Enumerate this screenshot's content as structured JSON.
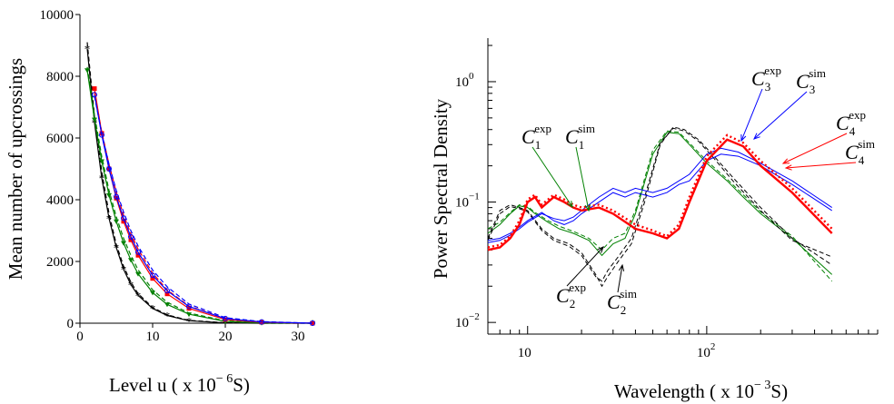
{
  "chart_data": [
    {
      "type": "line",
      "xlabel": "Level  u ( x 10",
      "xlabel_exp": "− 6",
      "xlabel_tail": "S)",
      "ylabel": "Mean number of upcrossings",
      "xlim": [
        0,
        32
      ],
      "ylim": [
        0,
        10000
      ],
      "xticks": [
        0,
        10,
        20,
        30
      ],
      "yticks": [
        0,
        2000,
        4000,
        6000,
        8000,
        10000
      ],
      "series": [
        {
          "color": "#000000",
          "style": "solid",
          "marker": "*",
          "x": [
            1,
            2,
            3,
            4,
            5,
            6,
            7,
            8,
            10,
            12,
            15,
            20,
            25,
            32
          ],
          "y": [
            8900,
            6500,
            4700,
            3400,
            2450,
            1750,
            1250,
            900,
            480,
            250,
            80,
            10,
            0,
            0
          ]
        },
        {
          "color": "#000000",
          "style": "dashed",
          "marker": "none",
          "x": [
            1,
            2,
            3,
            4,
            5,
            6,
            7,
            8,
            10,
            12,
            15,
            20,
            25,
            32
          ],
          "y": [
            9100,
            6700,
            4900,
            3550,
            2550,
            1850,
            1330,
            960,
            510,
            270,
            90,
            15,
            0,
            0
          ]
        },
        {
          "color": "#008000",
          "style": "solid",
          "marker": "v",
          "x": [
            1,
            2,
            3,
            4,
            5,
            6,
            7,
            8,
            10,
            12,
            15,
            20,
            25,
            32
          ],
          "y": [
            8200,
            6600,
            5250,
            4150,
            3300,
            2600,
            2050,
            1600,
            990,
            610,
            290,
            60,
            10,
            0
          ]
        },
        {
          "color": "#008000",
          "style": "dashed",
          "marker": "none",
          "x": [
            1,
            2,
            3,
            4,
            5,
            6,
            7,
            8,
            10,
            12,
            15,
            20,
            25,
            32
          ],
          "y": [
            8300,
            6750,
            5400,
            4300,
            3450,
            2750,
            2200,
            1730,
            1080,
            680,
            330,
            75,
            15,
            0
          ]
        },
        {
          "color": "#ff0000",
          "style": "solid",
          "marker": "s",
          "x": [
            2,
            3,
            4,
            5,
            6,
            7,
            8,
            10,
            12,
            15,
            20,
            25,
            32
          ],
          "y": [
            7600,
            6150,
            5000,
            4050,
            3300,
            2700,
            2200,
            1450,
            950,
            480,
            120,
            30,
            0
          ]
        },
        {
          "color": "#ff0000",
          "style": "dashed",
          "marker": "none",
          "x": [
            2,
            3,
            4,
            5,
            6,
            7,
            8,
            10,
            12,
            15,
            20,
            25,
            32
          ],
          "y": [
            7500,
            6200,
            5150,
            4250,
            3500,
            2900,
            2400,
            1620,
            1080,
            560,
            150,
            40,
            0
          ]
        },
        {
          "color": "#0000ff",
          "style": "solid",
          "marker": "o",
          "x": [
            2,
            3,
            4,
            5,
            6,
            7,
            8,
            10,
            12,
            15,
            20,
            25,
            32
          ],
          "y": [
            7400,
            6100,
            5000,
            4100,
            3400,
            2800,
            2300,
            1550,
            1050,
            540,
            150,
            40,
            0
          ]
        },
        {
          "color": "#0000ff",
          "style": "dashed",
          "marker": "none",
          "x": [
            2,
            3,
            4,
            5,
            6,
            7,
            8,
            10,
            12,
            15,
            20,
            25,
            32
          ],
          "y": [
            7350,
            6150,
            5150,
            4300,
            3600,
            3000,
            2500,
            1720,
            1180,
            620,
            180,
            50,
            0
          ]
        }
      ]
    },
    {
      "type": "line",
      "xscale": "log",
      "yscale": "log",
      "xlabel": "Wavelength ( x 10",
      "xlabel_exp": "− 3",
      "xlabel_tail": "S)",
      "ylabel": "Power Spectral Density",
      "xlim": [
        6,
        900
      ],
      "ylim": [
        0.008,
        2.3
      ],
      "xtick_labels": [
        {
          "base": "10",
          "exp": ""
        },
        {
          "base": "10",
          "exp": "2"
        }
      ],
      "xticks": [
        10,
        100
      ],
      "ytick_labels": [
        {
          "base": "10",
          "exp": "0"
        },
        {
          "base": "10",
          "exp": "−1"
        },
        {
          "base": "10",
          "exp": "−2"
        }
      ],
      "yticks": [
        1,
        0.1,
        0.01
      ],
      "annotations": [
        {
          "base": "C",
          "sub": "1",
          "sup": "exp",
          "color": "#008000"
        },
        {
          "base": "C",
          "sub": "1",
          "sup": "sim",
          "color": "#008000"
        },
        {
          "base": "C",
          "sub": "2",
          "sup": "exp",
          "color": "#000000"
        },
        {
          "base": "C",
          "sub": "2",
          "sup": "sim",
          "color": "#000000"
        },
        {
          "base": "C",
          "sub": "3",
          "sup": "exp",
          "color": "#0000ff"
        },
        {
          "base": "C",
          "sub": "3",
          "sup": "sim",
          "color": "#0000ff"
        },
        {
          "base": "C",
          "sub": "4",
          "sup": "exp",
          "color": "#ff0000"
        },
        {
          "base": "C",
          "sub": "4",
          "sup": "sim",
          "color": "#ff0000"
        }
      ],
      "series": [
        {
          "color": "#008000",
          "style": "solid",
          "width": 1,
          "x": [
            6,
            7,
            8,
            9,
            10,
            11,
            13,
            15,
            18,
            22,
            26,
            30,
            35,
            40,
            50,
            60,
            70,
            80,
            100,
            130,
            160,
            200,
            300,
            500
          ],
          "y": [
            0.055,
            0.065,
            0.08,
            0.093,
            0.09,
            0.08,
            0.068,
            0.06,
            0.055,
            0.048,
            0.036,
            0.045,
            0.05,
            0.08,
            0.25,
            0.38,
            0.37,
            0.3,
            0.21,
            0.15,
            0.11,
            0.08,
            0.05,
            0.025
          ]
        },
        {
          "color": "#008000",
          "style": "dashed",
          "width": 1,
          "x": [
            6,
            7,
            8,
            9,
            10,
            11,
            13,
            15,
            18,
            22,
            26,
            30,
            35,
            40,
            50,
            60,
            70,
            80,
            100,
            130,
            160,
            200,
            300,
            500
          ],
          "y": [
            0.06,
            0.068,
            0.082,
            0.095,
            0.092,
            0.082,
            0.07,
            0.063,
            0.057,
            0.05,
            0.04,
            0.05,
            0.055,
            0.085,
            0.27,
            0.39,
            0.38,
            0.31,
            0.22,
            0.155,
            0.115,
            0.083,
            0.052,
            0.022
          ]
        },
        {
          "color": "#000000",
          "style": "dashed",
          "width": 1,
          "x": [
            6,
            7,
            8,
            9,
            10,
            12,
            14,
            17,
            20,
            24,
            26,
            28,
            32,
            38,
            45,
            55,
            65,
            75,
            90,
            110,
            140,
            200,
            300,
            500
          ],
          "y": [
            0.05,
            0.085,
            0.095,
            0.09,
            0.085,
            0.06,
            0.05,
            0.045,
            0.038,
            0.025,
            0.02,
            0.024,
            0.032,
            0.045,
            0.1,
            0.3,
            0.42,
            0.4,
            0.33,
            0.24,
            0.16,
            0.09,
            0.05,
            0.03
          ]
        },
        {
          "color": "#000000",
          "style": "dashed",
          "width": 1,
          "x": [
            6,
            7,
            8,
            9,
            10,
            12,
            14,
            17,
            20,
            24,
            26,
            28,
            32,
            38,
            45,
            55,
            65,
            75,
            90,
            110,
            140,
            200,
            300,
            500
          ],
          "y": [
            0.048,
            0.08,
            0.092,
            0.088,
            0.083,
            0.058,
            0.048,
            0.043,
            0.036,
            0.024,
            0.022,
            0.027,
            0.035,
            0.05,
            0.11,
            0.31,
            0.41,
            0.39,
            0.32,
            0.23,
            0.15,
            0.085,
            0.048,
            0.035
          ]
        },
        {
          "color": "#0000ff",
          "style": "solid",
          "width": 1,
          "x": [
            6,
            7,
            8,
            9,
            10,
            12,
            14,
            16,
            18,
            20,
            25,
            30,
            35,
            40,
            50,
            60,
            70,
            80,
            100,
            120,
            150,
            200,
            300,
            500
          ],
          "y": [
            0.048,
            0.05,
            0.055,
            0.062,
            0.07,
            0.082,
            0.07,
            0.065,
            0.07,
            0.08,
            0.1,
            0.12,
            0.11,
            0.12,
            0.11,
            0.12,
            0.14,
            0.15,
            0.22,
            0.25,
            0.24,
            0.2,
            0.14,
            0.085
          ]
        },
        {
          "color": "#0000ff",
          "style": "solid",
          "width": 1,
          "x": [
            6,
            7,
            8,
            9,
            10,
            12,
            14,
            16,
            18,
            20,
            25,
            30,
            35,
            40,
            50,
            60,
            70,
            80,
            100,
            120,
            150,
            200,
            300,
            500
          ],
          "y": [
            0.046,
            0.048,
            0.053,
            0.06,
            0.068,
            0.08,
            0.073,
            0.07,
            0.075,
            0.085,
            0.11,
            0.13,
            0.12,
            0.13,
            0.12,
            0.13,
            0.15,
            0.17,
            0.25,
            0.28,
            0.26,
            0.21,
            0.15,
            0.09
          ]
        },
        {
          "color": "#ff0000",
          "style": "solid",
          "width": 2.4,
          "x": [
            6,
            7,
            8,
            9,
            10,
            11,
            12,
            14,
            16,
            18,
            20,
            25,
            30,
            40,
            50,
            60,
            70,
            80,
            100,
            130,
            160,
            200,
            300,
            500
          ],
          "y": [
            0.04,
            0.042,
            0.05,
            0.065,
            0.1,
            0.11,
            0.09,
            0.11,
            0.1,
            0.09,
            0.085,
            0.09,
            0.08,
            0.06,
            0.055,
            0.05,
            0.06,
            0.1,
            0.22,
            0.33,
            0.29,
            0.2,
            0.12,
            0.055
          ]
        },
        {
          "color": "#ff0000",
          "style": "dotted",
          "width": 2.4,
          "x": [
            6,
            7,
            8,
            9,
            10,
            11,
            12,
            14,
            16,
            18,
            20,
            25,
            30,
            40,
            50,
            60,
            70,
            80,
            100,
            130,
            160,
            200,
            300,
            500
          ],
          "y": [
            0.042,
            0.044,
            0.052,
            0.07,
            0.105,
            0.115,
            0.095,
            0.115,
            0.105,
            0.095,
            0.09,
            0.095,
            0.085,
            0.065,
            0.058,
            0.052,
            0.065,
            0.11,
            0.24,
            0.36,
            0.31,
            0.22,
            0.13,
            0.06
          ]
        }
      ]
    }
  ]
}
